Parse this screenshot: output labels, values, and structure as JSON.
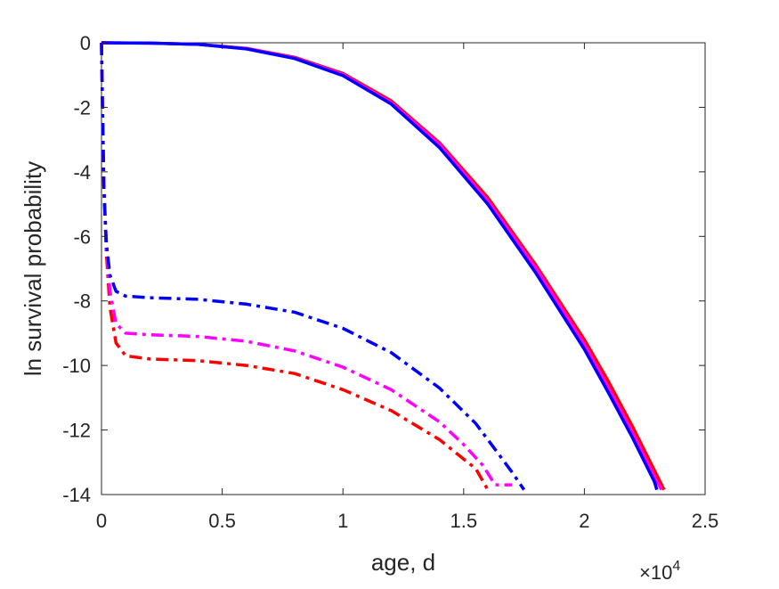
{
  "chart_data": {
    "type": "line",
    "title": "",
    "xlabel": "age, d",
    "ylabel": "ln survival probability",
    "x_exponent_label": {
      "base": "×10",
      "exponent": "4"
    },
    "xlim": [
      0,
      25000
    ],
    "ylim": [
      -14,
      0
    ],
    "xticks": [
      0,
      5000,
      10000,
      15000,
      20000,
      25000
    ],
    "xtick_labels": [
      "0",
      "0.5",
      "1",
      "1.5",
      "2",
      "2.5"
    ],
    "yticks": [
      0,
      -2,
      -4,
      -6,
      -8,
      -10,
      -12,
      -14
    ],
    "ytick_labels": [
      "0",
      "-2",
      "-4",
      "-6",
      "-8",
      "-10",
      "-12",
      "-14"
    ],
    "grid": false,
    "legend": "none",
    "series": [
      {
        "color": "#ff0000",
        "style": "solid",
        "points": [
          [
            0,
            0
          ],
          [
            2000,
            -0.01
          ],
          [
            4000,
            -0.05
          ],
          [
            6000,
            -0.17
          ],
          [
            8000,
            -0.45
          ],
          [
            10000,
            -0.95
          ],
          [
            12000,
            -1.8
          ],
          [
            14000,
            -3.1
          ],
          [
            16000,
            -4.8
          ],
          [
            18000,
            -6.9
          ],
          [
            20000,
            -9.2
          ],
          [
            21000,
            -10.5
          ],
          [
            22000,
            -11.9
          ],
          [
            23000,
            -13.4
          ],
          [
            23300,
            -13.85
          ]
        ]
      },
      {
        "color": "#ff00ff",
        "style": "solid",
        "points": [
          [
            0,
            0
          ],
          [
            2000,
            -0.01
          ],
          [
            4000,
            -0.05
          ],
          [
            6000,
            -0.18
          ],
          [
            8000,
            -0.47
          ],
          [
            10000,
            -0.98
          ],
          [
            12000,
            -1.85
          ],
          [
            14000,
            -3.15
          ],
          [
            16000,
            -4.9
          ],
          [
            18000,
            -7.0
          ],
          [
            20000,
            -9.35
          ],
          [
            21000,
            -10.7
          ],
          [
            22000,
            -12.1
          ],
          [
            23000,
            -13.6
          ],
          [
            23200,
            -13.85
          ]
        ]
      },
      {
        "color": "#0000ff",
        "style": "solid",
        "points": [
          [
            0,
            0
          ],
          [
            2000,
            -0.01
          ],
          [
            4000,
            -0.05
          ],
          [
            6000,
            -0.19
          ],
          [
            8000,
            -0.49
          ],
          [
            10000,
            -1.02
          ],
          [
            12000,
            -1.9
          ],
          [
            14000,
            -3.25
          ],
          [
            16000,
            -5.0
          ],
          [
            18000,
            -7.15
          ],
          [
            20000,
            -9.5
          ],
          [
            21000,
            -10.85
          ],
          [
            22000,
            -12.25
          ],
          [
            22900,
            -13.6
          ],
          [
            23000,
            -13.85
          ]
        ]
      },
      {
        "color": "#ff0000",
        "style": "dashdot",
        "points": [
          [
            0,
            0
          ],
          [
            40,
            -2
          ],
          [
            100,
            -4.5
          ],
          [
            200,
            -6.5
          ],
          [
            350,
            -8.2
          ],
          [
            600,
            -9.3
          ],
          [
            1000,
            -9.7
          ],
          [
            2000,
            -9.8
          ],
          [
            4000,
            -9.85
          ],
          [
            6000,
            -10.0
          ],
          [
            8000,
            -10.25
          ],
          [
            10000,
            -10.75
          ],
          [
            12000,
            -11.4
          ],
          [
            14000,
            -12.3
          ],
          [
            15000,
            -12.9
          ],
          [
            15500,
            -13.2
          ],
          [
            16000,
            -13.85
          ]
        ]
      },
      {
        "color": "#ff00ff",
        "style": "dashdot",
        "points": [
          [
            0,
            0
          ],
          [
            40,
            -2
          ],
          [
            100,
            -4.5
          ],
          [
            200,
            -6.3
          ],
          [
            350,
            -7.7
          ],
          [
            600,
            -8.7
          ],
          [
            1000,
            -9.0
          ],
          [
            2000,
            -9.05
          ],
          [
            4000,
            -9.1
          ],
          [
            6000,
            -9.25
          ],
          [
            8000,
            -9.55
          ],
          [
            10000,
            -10.05
          ],
          [
            12000,
            -10.75
          ],
          [
            14000,
            -11.75
          ],
          [
            15000,
            -12.45
          ],
          [
            15800,
            -13.1
          ],
          [
            16300,
            -13.7
          ],
          [
            17000,
            -13.7
          ]
        ]
      },
      {
        "color": "#0000ff",
        "style": "dashdot",
        "points": [
          [
            0,
            0
          ],
          [
            40,
            -2
          ],
          [
            100,
            -4.5
          ],
          [
            200,
            -6.2
          ],
          [
            350,
            -7.2
          ],
          [
            600,
            -7.7
          ],
          [
            1000,
            -7.85
          ],
          [
            2000,
            -7.9
          ],
          [
            4000,
            -7.95
          ],
          [
            6000,
            -8.1
          ],
          [
            8000,
            -8.35
          ],
          [
            10000,
            -8.85
          ],
          [
            12000,
            -9.6
          ],
          [
            14000,
            -10.7
          ],
          [
            15500,
            -11.8
          ],
          [
            16500,
            -12.8
          ],
          [
            17000,
            -13.3
          ],
          [
            17500,
            -13.85
          ]
        ]
      }
    ]
  }
}
